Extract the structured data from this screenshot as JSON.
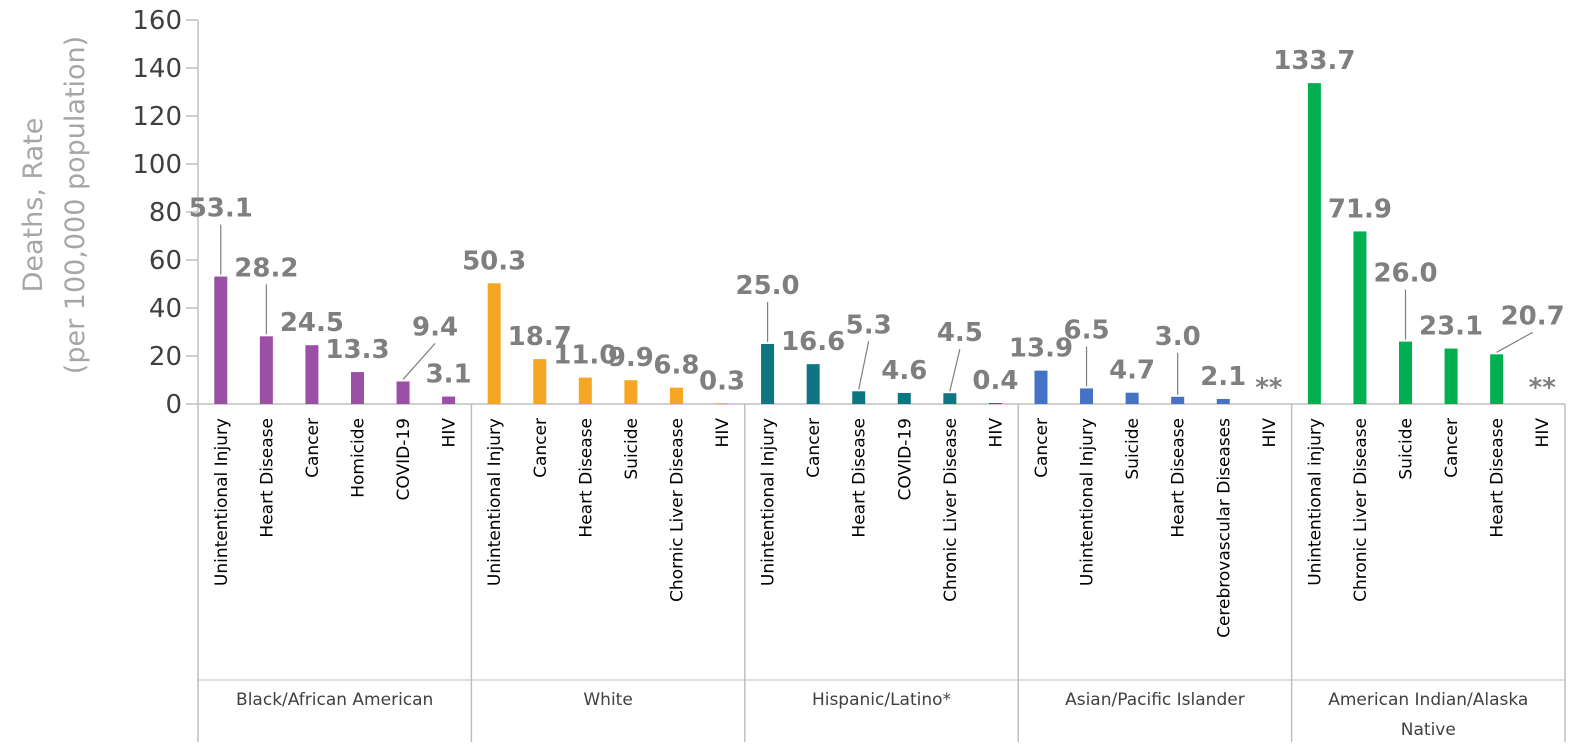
{
  "chart_data": {
    "type": "bar",
    "title": "",
    "ylabel": "Deaths, Rate",
    "ylabel_line2": "(per 100,000 population)",
    "ylim": [
      0,
      160
    ],
    "yticks": [
      "0",
      "20",
      "40",
      "60",
      "80",
      "100",
      "120",
      "140",
      "160"
    ],
    "grid": false,
    "legend": "none",
    "groups": [
      {
        "name": "Black/African American",
        "color": "#9b4fa5",
        "bars": [
          {
            "label": "Unintentional Injury",
            "value": 53.1,
            "display": "53.1"
          },
          {
            "label": "Heart Disease",
            "value": 28.2,
            "display": "28.2"
          },
          {
            "label": "Cancer",
            "value": 24.5,
            "display": "24.5"
          },
          {
            "label": "Homicide",
            "value": 13.3,
            "display": "13.3"
          },
          {
            "label": "COVID-19",
            "value": 9.4,
            "display": "9.4"
          },
          {
            "label": "HIV",
            "value": 3.1,
            "display": "3.1"
          }
        ]
      },
      {
        "name": "White",
        "color": "#f5a623",
        "bars": [
          {
            "label": "Unintentional Injury",
            "value": 50.3,
            "display": "50.3"
          },
          {
            "label": "Cancer",
            "value": 18.7,
            "display": "18.7"
          },
          {
            "label": "Heart Disease",
            "value": 11.0,
            "display": "11.0"
          },
          {
            "label": "Suicide",
            "value": 9.9,
            "display": "9.9"
          },
          {
            "label": "Chornic Liver Disease",
            "value": 6.8,
            "display": "6.8"
          },
          {
            "label": "HIV",
            "value": 0.3,
            "display": "0.3"
          }
        ]
      },
      {
        "name": "Hispanic/Latino*",
        "color": "#0e7583",
        "bars": [
          {
            "label": "Unintentional Injury",
            "value": 25.0,
            "display": "25.0"
          },
          {
            "label": "Cancer",
            "value": 16.6,
            "display": "16.6"
          },
          {
            "label": "Heart Disease",
            "value": 5.3,
            "display": "5.3"
          },
          {
            "label": "COVID-19",
            "value": 4.6,
            "display": "4.6"
          },
          {
            "label": "Chronic Liver Disease",
            "value": 4.5,
            "display": "4.5"
          },
          {
            "label": "HIV",
            "value": 0.4,
            "display": "0.4"
          }
        ]
      },
      {
        "name": "Asian/Pacific Islander",
        "color": "#4472c4",
        "bars": [
          {
            "label": "Cancer",
            "value": 13.9,
            "display": "13.9"
          },
          {
            "label": "Unintentional Injury",
            "value": 6.5,
            "display": "6.5"
          },
          {
            "label": "Suicide",
            "value": 4.7,
            "display": "4.7"
          },
          {
            "label": "Heart Disease",
            "value": 3.0,
            "display": "3.0"
          },
          {
            "label": "Cerebrovascular Diseases",
            "value": 2.1,
            "display": "2.1"
          },
          {
            "label": "HIV",
            "value": null,
            "display": "**"
          }
        ]
      },
      {
        "name": "American Indian/Alaska Native",
        "color": "#00b050",
        "bars": [
          {
            "label": "Unintentional injury",
            "value": 133.7,
            "display": "133.7"
          },
          {
            "label": "Chronic Liver Disease",
            "value": 71.9,
            "display": "71.9"
          },
          {
            "label": "Suicide",
            "value": 26.0,
            "display": "26.0"
          },
          {
            "label": "Cancer",
            "value": 23.1,
            "display": "23.1"
          },
          {
            "label": "Heart Disease",
            "value": 20.7,
            "display": "20.7"
          },
          {
            "label": "HIV",
            "value": null,
            "display": "**"
          }
        ]
      }
    ]
  }
}
